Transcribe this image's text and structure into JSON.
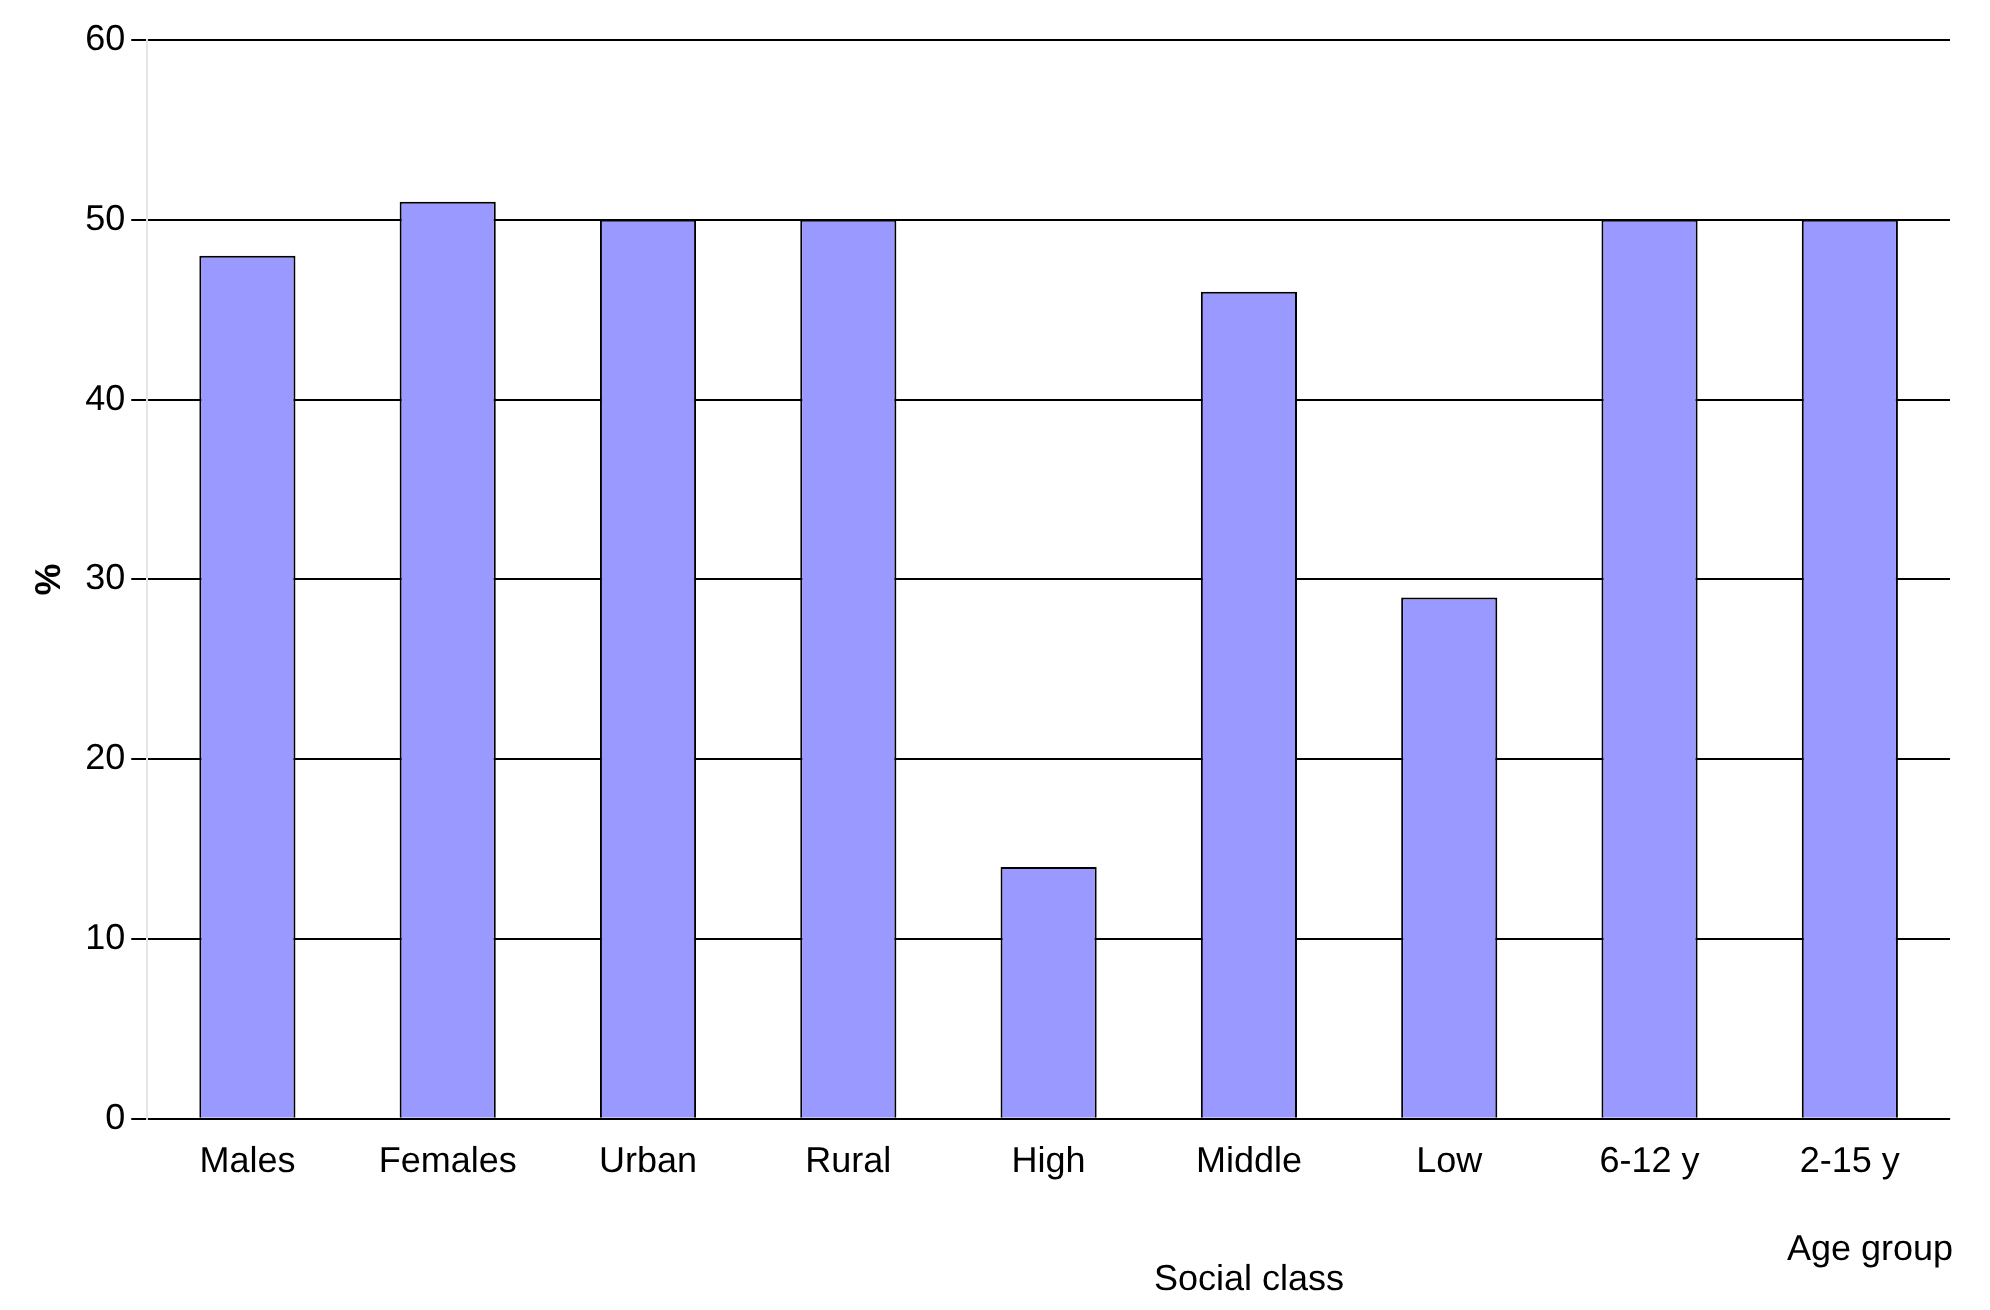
{
  "chart_data": {
    "type": "bar",
    "ylabel": "%",
    "categories": [
      "Males",
      "Females",
      "Urban",
      "Rural",
      "High",
      "Middle",
      "Low",
      "6-12 y",
      "2-15 y"
    ],
    "values": [
      48,
      51,
      50,
      50,
      14,
      46,
      29,
      50,
      50
    ],
    "color": "#9999ff",
    "ylim": [
      0,
      60
    ],
    "yticks": [
      0,
      10,
      20,
      30,
      40,
      50,
      60
    ],
    "grid": "y",
    "annotations": [
      "Social class",
      "Age group"
    ]
  }
}
